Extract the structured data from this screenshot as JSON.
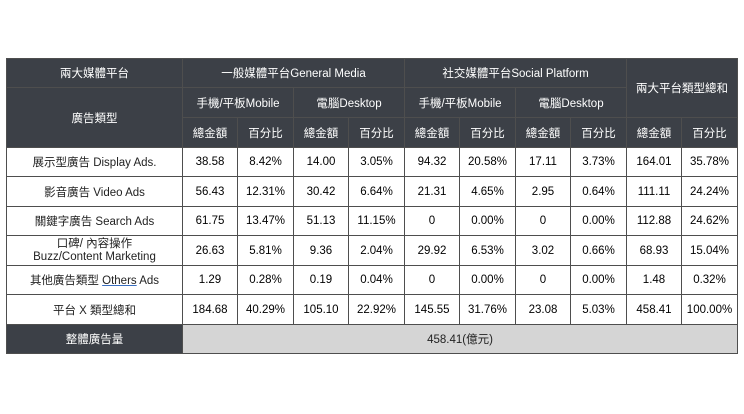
{
  "header": {
    "corner": "兩大媒體平台",
    "general_media": "一般媒體平台General Media",
    "social_platform": "社交媒體平台Social Platform",
    "total_group": "兩大平台類型總和",
    "ad_type": "廣告類型",
    "mobile": "手機/平板Mobile",
    "desktop": "電腦Desktop",
    "amount": "總金額",
    "percent": "百分比"
  },
  "rows": [
    {
      "label": "展示型廣告 Display Ads.",
      "cells": [
        "38.58",
        "8.42%",
        "14.00",
        "3.05%",
        "94.32",
        "20.58%",
        "17.11",
        "3.73%",
        "164.01",
        "35.78%"
      ]
    },
    {
      "label": "影音廣告 Video Ads",
      "cells": [
        "56.43",
        "12.31%",
        "30.42",
        "6.64%",
        "21.31",
        "4.65%",
        "2.95",
        "0.64%",
        "111.11",
        "24.24%"
      ]
    },
    {
      "label": "關鍵字廣告 Search Ads",
      "cells": [
        "61.75",
        "13.47%",
        "51.13",
        "11.15%",
        "0",
        "0.00%",
        "0",
        "0.00%",
        "112.88",
        "24.62%"
      ]
    },
    {
      "label_line1": "口碑/ 內容操作",
      "label_line2": "Buzz/Content Marketing",
      "cells": [
        "26.63",
        "5.81%",
        "9.36",
        "2.04%",
        "29.92",
        "6.53%",
        "3.02",
        "0.66%",
        "68.93",
        "15.04%"
      ]
    },
    {
      "label_pre": "其他廣告類型 ",
      "label_ul": "Others",
      "label_post": " Ads",
      "cells": [
        "1.29",
        "0.28%",
        "0.19",
        "0.04%",
        "0",
        "0.00%",
        "0",
        "0.00%",
        "1.48",
        "0.32%"
      ]
    },
    {
      "label": "平台 X 類型總和",
      "cells": [
        "184.68",
        "40.29%",
        "105.10",
        "22.92%",
        "145.55",
        "31.76%",
        "23.08",
        "5.03%",
        "458.41",
        "100.00%"
      ]
    }
  ],
  "footer": {
    "label": "整體廣告量",
    "value": "458.41(億元)"
  },
  "colors": {
    "header_dark": "#3c4047",
    "gray_cell": "#d5d5d5",
    "link_underline": "#3a6fc1"
  }
}
